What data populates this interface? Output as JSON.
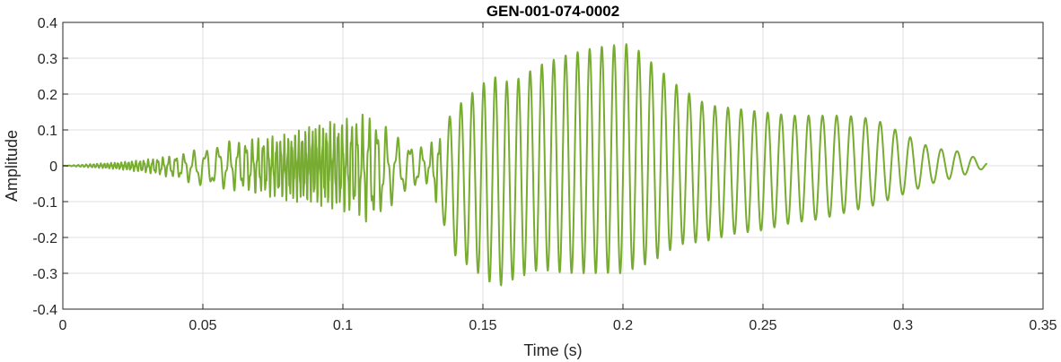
{
  "chart_data": {
    "type": "line",
    "title": "GEN-001-074-0002",
    "xlabel": "Time (s)",
    "ylabel": "Amplitude",
    "xlim": [
      0,
      0.35
    ],
    "ylim": [
      -0.4,
      0.4
    ],
    "xticks": [
      0,
      0.05,
      0.1,
      0.15,
      0.2,
      0.25,
      0.3,
      0.35
    ],
    "xtick_labels": [
      "0",
      "0.05",
      "0.1",
      "0.15",
      "0.2",
      "0.25",
      "0.3",
      "0.35"
    ],
    "yticks": [
      -0.4,
      -0.3,
      -0.2,
      -0.1,
      0,
      0.1,
      0.2,
      0.3,
      0.4
    ],
    "ytick_labels": [
      "-0.4",
      "-0.3",
      "-0.2",
      "-0.1",
      "0",
      "0.1",
      "0.2",
      "0.3",
      "0.4"
    ],
    "grid": true,
    "color": "#77AC30",
    "series": [
      {
        "x": [
          0,
          0.01,
          0.02,
          0.03,
          0.04,
          0.05,
          0.06,
          0.07,
          0.08,
          0.09,
          0.1,
          0.105,
          0.11,
          0.12,
          0.13,
          0.135,
          0.14,
          0.15,
          0.155,
          0.16,
          0.17,
          0.18,
          0.19,
          0.2,
          0.203,
          0.21,
          0.22,
          0.23,
          0.24,
          0.25,
          0.26,
          0.27,
          0.28,
          0.29,
          0.3,
          0.31,
          0.32,
          0.33
        ],
        "max": [
          0,
          0.005,
          0.01,
          0.018,
          0.03,
          0.05,
          0.07,
          0.08,
          0.09,
          0.12,
          0.13,
          0.14,
          0.15,
          0.08,
          0.05,
          0.1,
          0.16,
          0.23,
          0.25,
          0.23,
          0.28,
          0.31,
          0.33,
          0.34,
          0.34,
          0.29,
          0.22,
          0.17,
          0.16,
          0.15,
          0.14,
          0.14,
          0.14,
          0.13,
          0.09,
          0.05,
          0.04,
          0.01
        ],
        "min": [
          0,
          -0.005,
          -0.01,
          -0.02,
          -0.035,
          -0.06,
          -0.07,
          -0.08,
          -0.1,
          -0.11,
          -0.13,
          -0.14,
          -0.17,
          -0.09,
          -0.05,
          -0.14,
          -0.25,
          -0.31,
          -0.34,
          -0.32,
          -0.29,
          -0.3,
          -0.3,
          -0.3,
          -0.29,
          -0.27,
          -0.22,
          -0.21,
          -0.19,
          -0.18,
          -0.16,
          -0.15,
          -0.13,
          -0.11,
          -0.08,
          -0.05,
          -0.03,
          -0.005
        ]
      }
    ]
  }
}
